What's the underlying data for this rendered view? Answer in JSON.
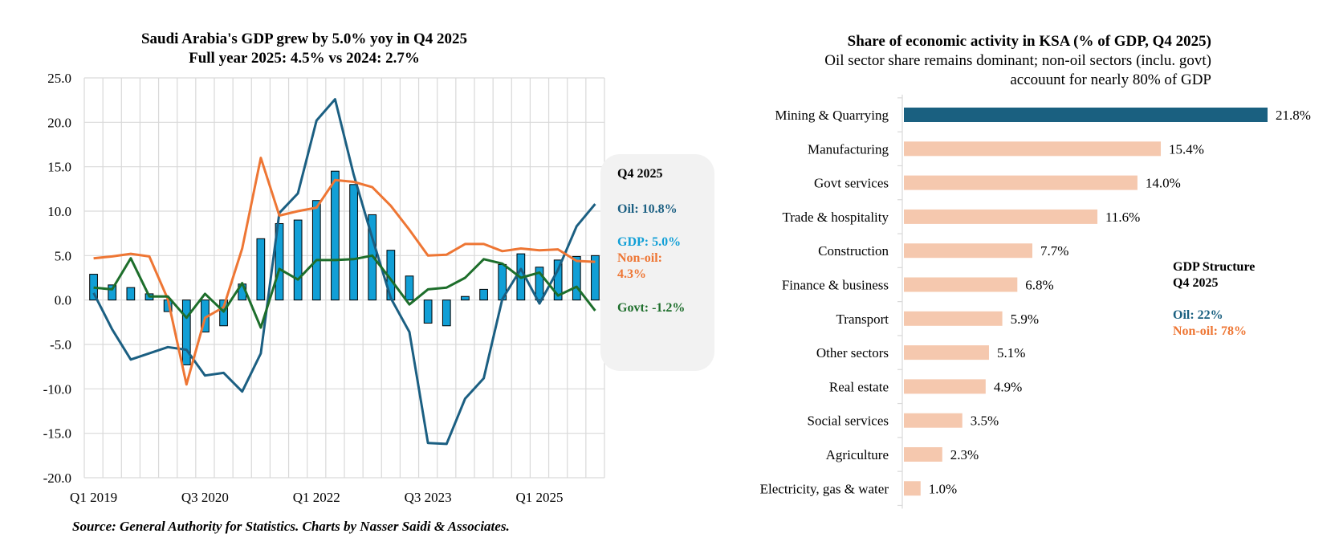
{
  "chart_data": [
    {
      "type": "bar+line",
      "title": "Saudi Arabia's GDP grew by 5.0% yoy in Q4 2025",
      "subtitle": "Full year 2025: 4.5% vs 2024: 2.7%",
      "xlabel": "",
      "ylabel": "",
      "ylim": [
        -20,
        25
      ],
      "yticks": [
        25,
        20,
        15,
        10,
        5,
        0,
        -5,
        -10,
        -15,
        -20
      ],
      "ytick_labels": [
        "25.0",
        "20.0",
        "15.0",
        "10.0",
        "5.0",
        "0.0",
        "-5.0",
        "-10.0",
        "-15.0",
        "-20.0"
      ],
      "grid": true,
      "categories": [
        "Q1 2019",
        "Q2 2019",
        "Q3 2019",
        "Q4 2019",
        "Q1 2020",
        "Q2 2020",
        "Q3 2020",
        "Q4 2020",
        "Q1 2021",
        "Q2 2021",
        "Q3 2021",
        "Q4 2021",
        "Q1 2022",
        "Q2 2022",
        "Q3 2022",
        "Q4 2022",
        "Q1 2023",
        "Q2 2023",
        "Q3 2023",
        "Q4 2023",
        "Q1 2024",
        "Q2 2024",
        "Q3 2024",
        "Q4 2024",
        "Q1 2025",
        "Q2 2025",
        "Q3 2025",
        "Q4 2025"
      ],
      "xtick_labels": [
        {
          "index": 0,
          "label": "Q1 2019"
        },
        {
          "index": 6,
          "label": "Q3 2020"
        },
        {
          "index": 12,
          "label": "Q1 2022"
        },
        {
          "index": 18,
          "label": "Q3 2023"
        },
        {
          "index": 24,
          "label": "Q1 2025"
        }
      ],
      "series": [
        {
          "name": "GDP",
          "kind": "bar",
          "color": "#119fd6",
          "values": [
            2.9,
            1.7,
            1.4,
            0.7,
            -1.3,
            -7.3,
            -3.6,
            -2.9,
            1.8,
            6.9,
            8.6,
            9.0,
            11.2,
            14.5,
            13.0,
            9.6,
            5.6,
            2.7,
            -2.6,
            -2.9,
            0.4,
            1.2,
            4.0,
            5.2,
            3.7,
            4.5,
            4.9,
            5.0
          ]
        },
        {
          "name": "Oil",
          "kind": "line",
          "color": "#1b5f82",
          "values": [
            0.8,
            -3.3,
            -6.7,
            -6.0,
            -5.3,
            -5.6,
            -8.5,
            -8.2,
            -10.3,
            -6.0,
            9.8,
            12.0,
            20.2,
            22.6,
            14.1,
            7.0,
            0.2,
            -3.6,
            -16.1,
            -16.2,
            -11.1,
            -8.8,
            0.1,
            3.5,
            -0.4,
            3.4,
            8.3,
            10.8
          ]
        },
        {
          "name": "Non-oil",
          "kind": "line",
          "color": "#ee7634",
          "values": [
            4.7,
            4.9,
            5.2,
            4.9,
            0.1,
            -9.5,
            -2.0,
            -0.8,
            5.8,
            16.0,
            9.5,
            10.0,
            10.4,
            13.5,
            13.3,
            12.7,
            10.6,
            7.9,
            5.0,
            5.1,
            6.3,
            6.3,
            5.5,
            5.8,
            5.6,
            5.7,
            4.4,
            4.3
          ]
        },
        {
          "name": "Govt",
          "kind": "line",
          "color": "#1d6e2b",
          "values": [
            1.4,
            1.2,
            4.7,
            0.4,
            0.4,
            -2.0,
            0.7,
            -1.3,
            1.9,
            -3.1,
            3.5,
            2.3,
            4.5,
            4.5,
            4.6,
            5.0,
            2.3,
            -0.5,
            1.2,
            1.4,
            2.5,
            4.6,
            4.1,
            2.5,
            3.1,
            0.5,
            1.5,
            -1.2
          ]
        }
      ],
      "annotation_box": {
        "heading": "Q4 2025",
        "oil": "Oil: 10.8%",
        "gdp": "GDP: 5.0%",
        "nonoil_line1": "Non-oil:",
        "nonoil_line2": "4.3%",
        "govt": "Govt: -1.2%"
      },
      "source": "Source: General Authority for Statistics. Charts by Nasser Saidi & Associates."
    },
    {
      "type": "bar",
      "orientation": "horizontal",
      "title": "Share of economic activity in KSA (% of GDP, Q4 2025)",
      "subtitle_lines": [
        "Oil sector share remains dominant; non-oil sectors (inclu. govt)",
        "accouunt for nearly 80% of GDP"
      ],
      "categories": [
        "Mining & Quarrying",
        "Manufacturing",
        "Govt services",
        "Trade & hospitality",
        "Construction",
        "Finance & business",
        "Transport",
        "Other sectors",
        "Real estate",
        "Social services",
        "Agriculture",
        "Electricity, gas & water"
      ],
      "values": [
        21.8,
        15.4,
        14.0,
        11.6,
        7.7,
        6.8,
        5.9,
        5.1,
        4.9,
        3.5,
        2.3,
        1.0
      ],
      "value_labels": [
        "21.8%",
        "15.4%",
        "14.0%",
        "11.6%",
        "7.7%",
        "6.8%",
        "5.9%",
        "5.1%",
        "4.9%",
        "3.5%",
        "2.3%",
        "1.0%"
      ],
      "highlight_color": "#1a6080",
      "bar_color": "#f5c8ae",
      "highlight_index": 0,
      "xlim": [
        0,
        22
      ],
      "grid": false,
      "annotation": {
        "heading_line1": "GDP Structure",
        "heading_line2": "Q4 2025",
        "oil": "Oil: 22%",
        "nonoil": "Non-oil: 78%",
        "oil_color": "#1a6080",
        "nonoil_color": "#ee7634"
      }
    }
  ]
}
